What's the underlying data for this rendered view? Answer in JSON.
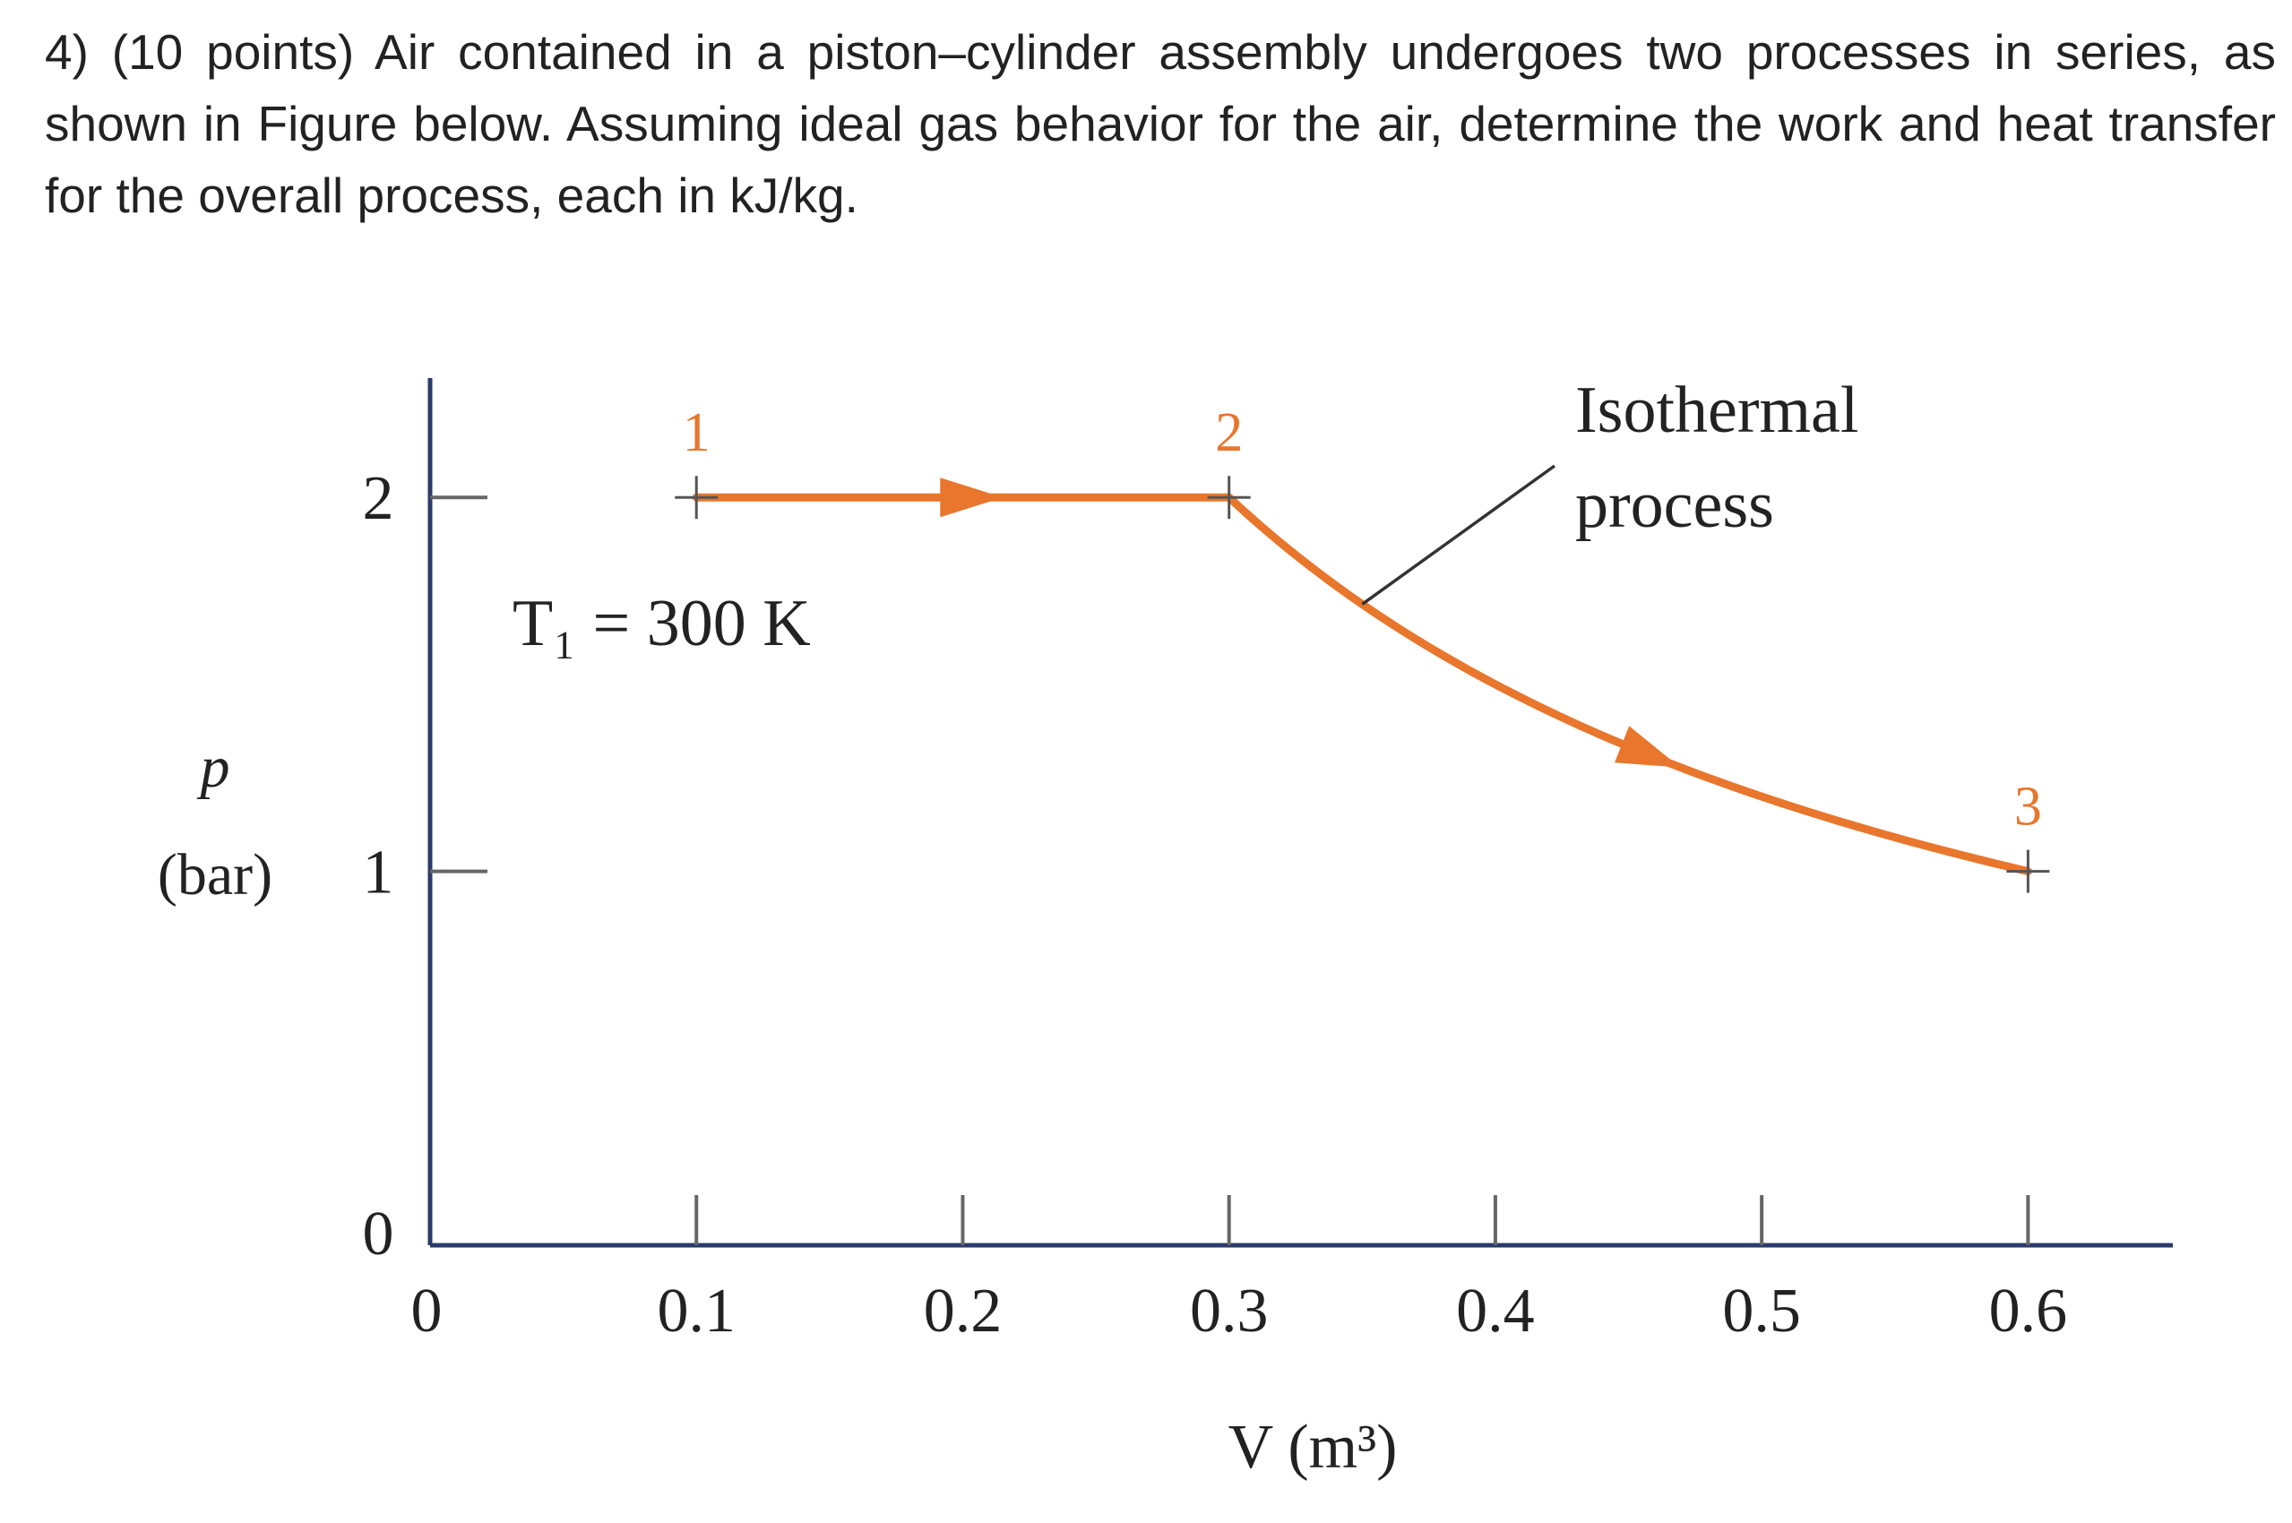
{
  "question": {
    "text": "4) (10 points) Air contained in a piston–cylinder assembly undergoes two processes in series, as shown in Figure below. Assuming ideal gas behavior for the air, determine the work and heat transfer for the overall process, each in kJ/kg."
  },
  "chart_data": {
    "type": "line",
    "title": "",
    "xlabel": "V (m³)",
    "ylabel_line1": "p",
    "ylabel_line2": "(bar)",
    "xlim": [
      0,
      0.65
    ],
    "ylim": [
      0,
      2.3
    ],
    "x_ticks": [
      "0",
      "0.1",
      "0.2",
      "0.3",
      "0.4",
      "0.5",
      "0.6"
    ],
    "y_ticks": [
      "0",
      "1",
      "2"
    ],
    "grid": false,
    "series": [
      {
        "points": [
          {
            "label": "1",
            "V": 0.1,
            "p": 2
          },
          {
            "label": "2",
            "V": 0.3,
            "p": 2
          },
          {
            "label": "3",
            "V": 0.6,
            "p": 1
          }
        ]
      }
    ],
    "annotations": {
      "temperature": "T₁ = 300 K",
      "isothermal_line1": "Isothermal",
      "isothermal_line2": "process"
    },
    "colors": {
      "axis": "#2b3a6b",
      "process": "#e8762c",
      "text": "#222222"
    }
  }
}
